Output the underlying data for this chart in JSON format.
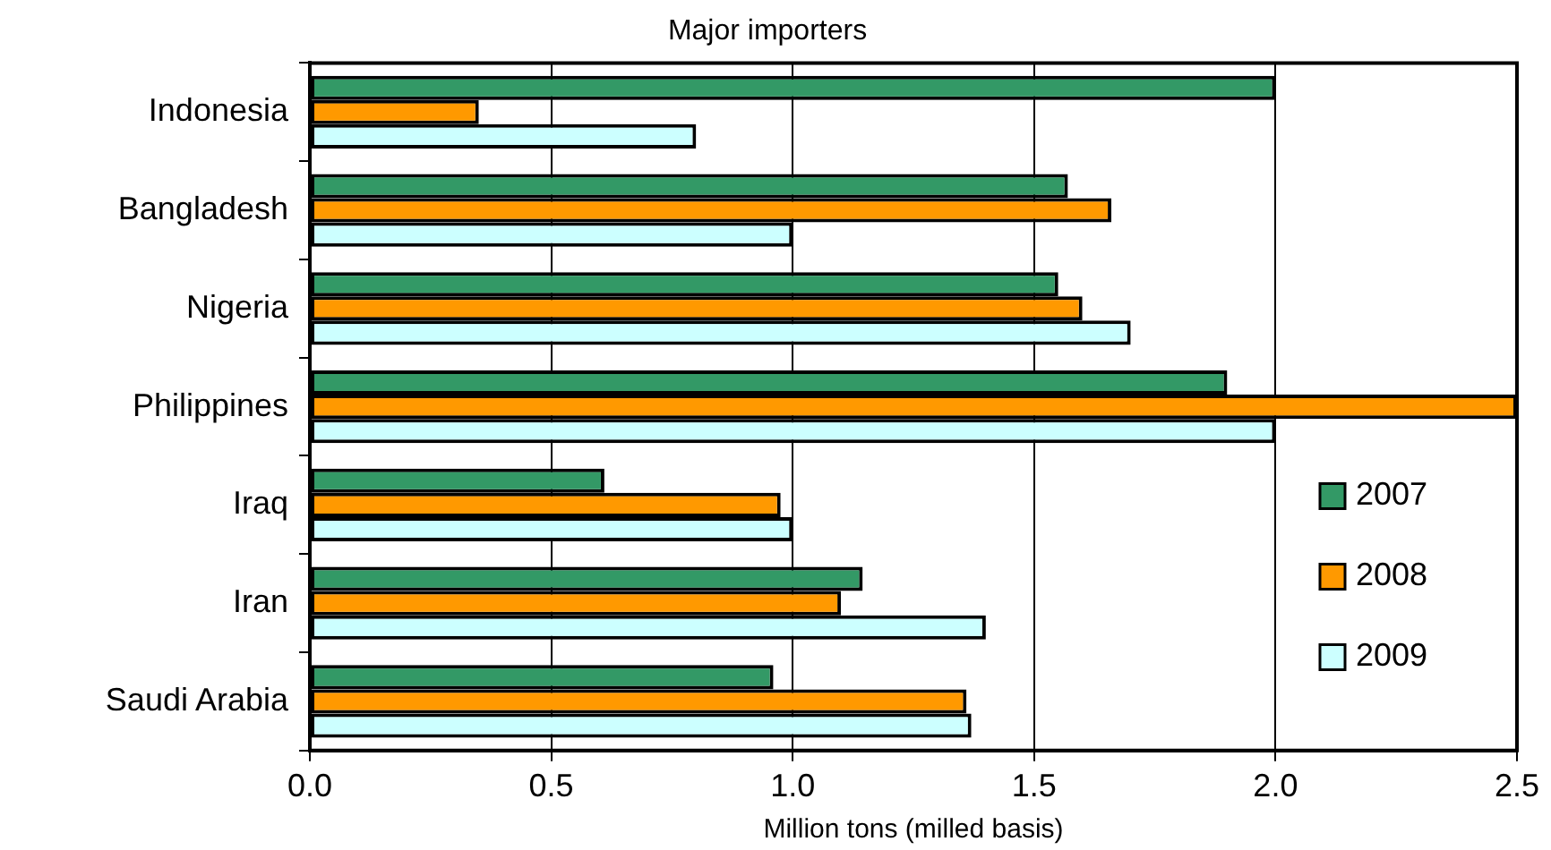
{
  "chart_data": {
    "type": "bar",
    "orientation": "horizontal",
    "title": "Major importers",
    "xlabel": "Million tons (milled basis)",
    "categories": [
      "Indonesia",
      "Bangladesh",
      "Nigeria",
      "Philippines",
      "Iraq",
      "Iran",
      "Saudi Arabia"
    ],
    "series": [
      {
        "name": "2007",
        "color": "#339966",
        "values": [
          2.0,
          1.57,
          1.55,
          1.9,
          0.61,
          1.145,
          0.96
        ]
      },
      {
        "name": "2008",
        "color": "#ff9900",
        "values": [
          0.35,
          1.66,
          1.6,
          2.5,
          0.975,
          1.1,
          1.36
        ]
      },
      {
        "name": "2009",
        "color": "#ccffff",
        "values": [
          0.8,
          1.0,
          1.7,
          2.0,
          1.0,
          1.4,
          1.37
        ]
      }
    ],
    "xlim": [
      0,
      2.5
    ],
    "xticks": [
      {
        "value": 0,
        "label": "0.0"
      },
      {
        "value": 0.5,
        "label": "0.5"
      },
      {
        "value": 1,
        "label": "1.0"
      },
      {
        "value": 1.5,
        "label": "1.5"
      },
      {
        "value": 2,
        "label": "2.0"
      },
      {
        "value": 2.5,
        "label": "2.5"
      }
    ],
    "grid": "x",
    "legend": "right"
  }
}
